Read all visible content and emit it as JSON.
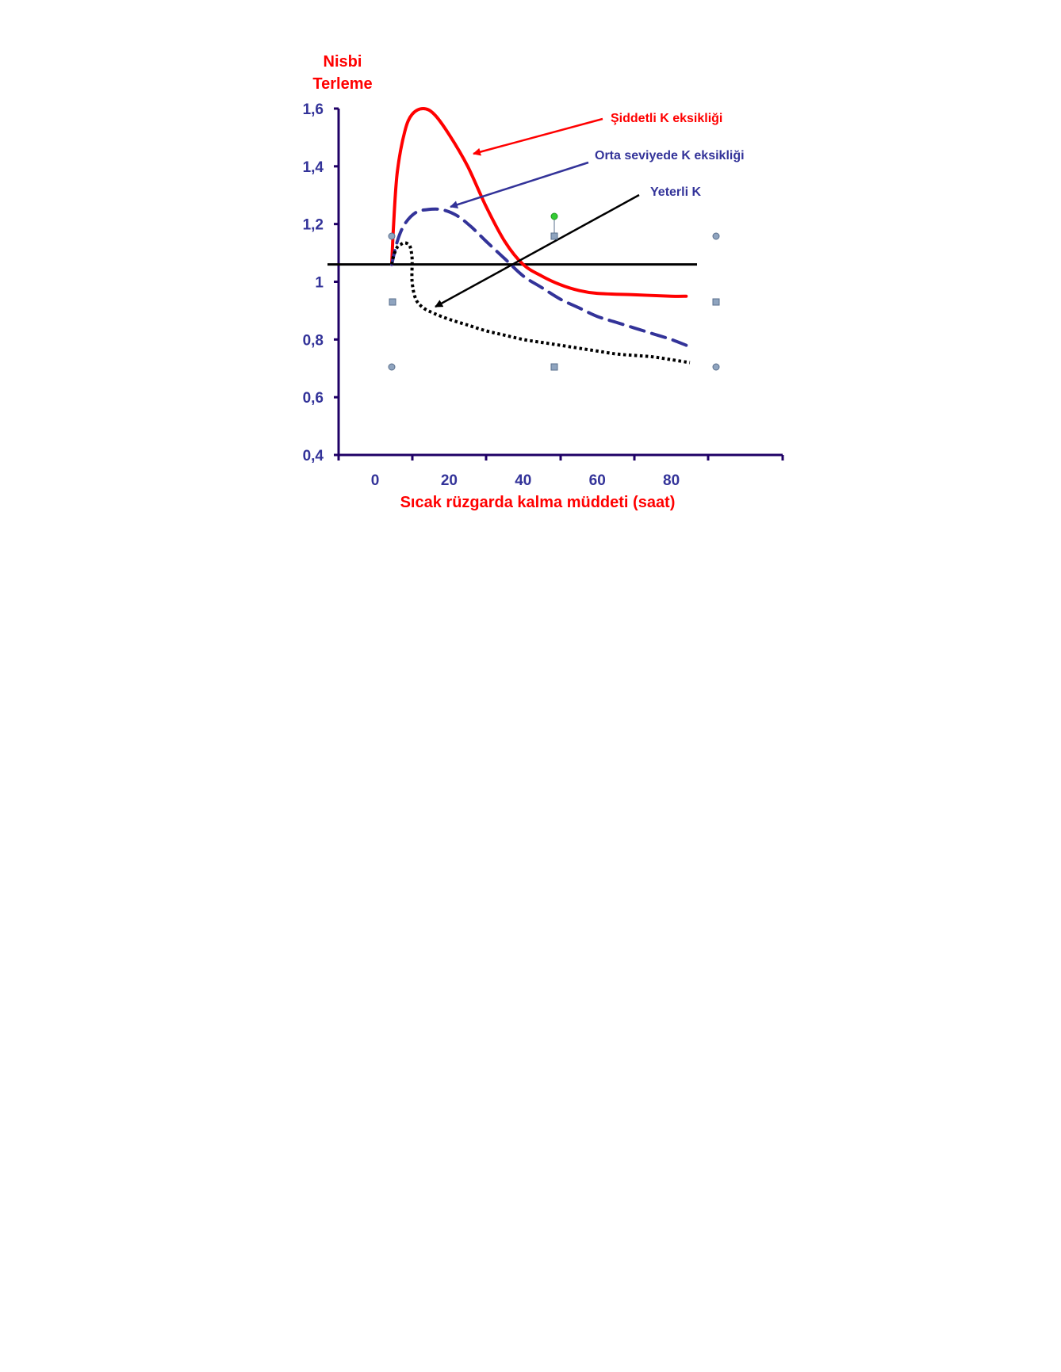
{
  "chart_data": {
    "type": "line",
    "ylabel_lines": [
      "Nisbi",
      "Terleme"
    ],
    "xlabel": "Sıcak rüzgarda kalma müddeti (saat)",
    "y_ticks": [
      "0,4",
      "0,6",
      "0,8",
      "1",
      "1,2",
      "1,4",
      "1,6"
    ],
    "x_ticks": [
      "0",
      "20",
      "40",
      "60",
      "80"
    ],
    "ylim": [
      0.4,
      1.6
    ],
    "annotations": [
      {
        "text": "Şiddetli K eksikliği",
        "color": "#ff0000"
      },
      {
        "text": "Orta seviyede K eksikliği",
        "color": "#333399"
      },
      {
        "text": "Yeterli K",
        "color": "#333399"
      }
    ],
    "series": [
      {
        "legend_ref": 0,
        "style": "solid",
        "color": "#ff0000",
        "x": [
          4.5,
          5,
          6,
          8,
          10,
          13,
          16,
          20,
          25,
          30,
          35,
          40,
          45,
          50,
          55,
          60,
          70,
          80,
          84
        ],
        "y": [
          1.06,
          1.2,
          1.38,
          1.52,
          1.58,
          1.6,
          1.58,
          1.51,
          1.4,
          1.26,
          1.14,
          1.06,
          1.02,
          0.99,
          0.97,
          0.96,
          0.955,
          0.95,
          0.95
        ]
      },
      {
        "legend_ref": 1,
        "style": "dashed",
        "color": "#333399",
        "x": [
          4.5,
          6,
          8,
          11,
          14,
          18,
          22,
          26,
          30,
          35,
          40,
          45,
          50,
          55,
          60,
          65,
          70,
          75,
          80,
          84
        ],
        "y": [
          1.06,
          1.14,
          1.2,
          1.24,
          1.25,
          1.25,
          1.23,
          1.19,
          1.14,
          1.08,
          1.02,
          0.98,
          0.94,
          0.91,
          0.88,
          0.86,
          0.84,
          0.82,
          0.8,
          0.78
        ]
      },
      {
        "legend_ref": 2,
        "style": "dotted",
        "color": "#000000",
        "x": [
          4.5,
          5,
          6,
          7,
          8,
          9,
          9.5,
          10,
          10,
          11,
          13,
          16,
          20,
          25,
          30,
          35,
          40,
          45,
          50,
          55,
          60,
          65,
          70,
          75,
          80,
          85
        ],
        "y": [
          1.06,
          1.09,
          1.12,
          1.13,
          1.135,
          1.13,
          1.12,
          1.08,
          1.0,
          0.94,
          0.91,
          0.89,
          0.87,
          0.85,
          0.83,
          0.815,
          0.8,
          0.79,
          0.78,
          0.77,
          0.76,
          0.75,
          0.745,
          0.74,
          0.73,
          0.72
        ]
      }
    ],
    "reference_line": {
      "y": 1.06,
      "color": "#000000"
    }
  },
  "colors": {
    "axis": "#1f0066",
    "tick_label": "#333399",
    "title_red": "#ff0000",
    "handle": "#8fa4bf",
    "handle_rot": "#33cc33"
  }
}
